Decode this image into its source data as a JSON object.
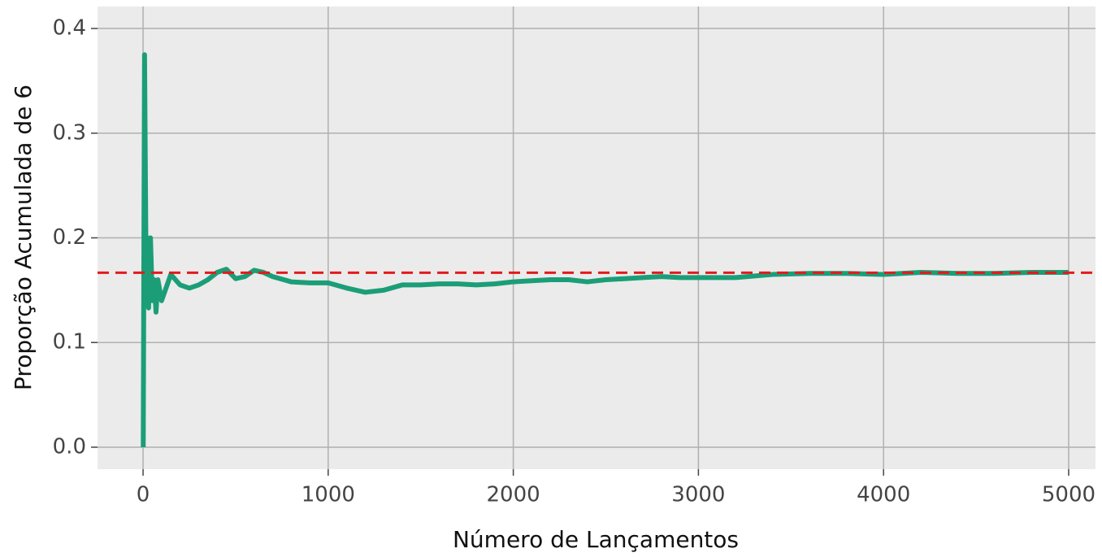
{
  "chart_data": {
    "type": "line",
    "xlabel": "Número de Lançamentos",
    "ylabel": "Proporção Acumulada de 6",
    "x": [
      1,
      8,
      15,
      20,
      25,
      30,
      40,
      50,
      60,
      70,
      80,
      100,
      120,
      150,
      200,
      250,
      300,
      350,
      400,
      450,
      500,
      550,
      600,
      650,
      700,
      800,
      900,
      1000,
      1100,
      1200,
      1300,
      1400,
      1500,
      1600,
      1700,
      1800,
      1900,
      2000,
      2100,
      2200,
      2300,
      2400,
      2500,
      2600,
      2700,
      2800,
      2900,
      3000,
      3200,
      3400,
      3600,
      3800,
      4000,
      4200,
      4400,
      4600,
      4800,
      5000
    ],
    "series": [
      {
        "color": "#1b9e77",
        "values": [
          0,
          0.375,
          0.2,
          0.15,
          0.2,
          0.133,
          0.2,
          0.14,
          0.16,
          0.129,
          0.16,
          0.14,
          0.15,
          0.165,
          0.155,
          0.152,
          0.155,
          0.16,
          0.167,
          0.17,
          0.161,
          0.163,
          0.169,
          0.167,
          0.163,
          0.158,
          0.157,
          0.157,
          0.152,
          0.148,
          0.15,
          0.155,
          0.155,
          0.156,
          0.156,
          0.155,
          0.156,
          0.158,
          0.159,
          0.16,
          0.16,
          0.158,
          0.16,
          0.161,
          0.162,
          0.163,
          0.162,
          0.162,
          0.162,
          0.165,
          0.166,
          0.166,
          0.165,
          0.167,
          0.166,
          0.166,
          0.167,
          0.167
        ]
      }
    ],
    "reference_line": {
      "value": 0.1667,
      "color": "#e41a1c"
    },
    "xlim": [
      -246,
      5145
    ],
    "ylim": [
      -0.021,
      0.421
    ],
    "xticks": [
      0,
      1000,
      2000,
      3000,
      4000,
      5000
    ],
    "yticks": [
      {
        "value": 0,
        "label": "0.0"
      },
      0.1,
      0.2,
      0.3,
      0.4
    ],
    "grid": true
  }
}
